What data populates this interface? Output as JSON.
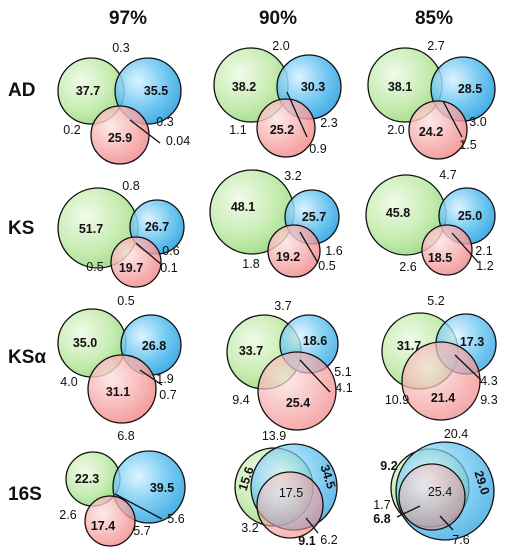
{
  "columns": [
    "97%",
    "90%",
    "85%"
  ],
  "rows": [
    "AD",
    "KS",
    "KSα",
    "16S"
  ],
  "colors": {
    "green_fill": "#b9e6a2",
    "blue_fill": "#36a9e5",
    "red_fill": "#f59a9a",
    "outline": "#111111"
  },
  "panels": {
    "ad_97": {
      "green": "37.7",
      "blue": "35.5",
      "red": "25.9",
      "gb": "0.3",
      "gr": "0.2",
      "br": "0.3",
      "all": "0.04"
    },
    "ad_90": {
      "green": "38.2",
      "blue": "30.3",
      "red": "25.2",
      "gb": "2.0",
      "gr": "1.1",
      "br": "2.3",
      "all": "0.9"
    },
    "ad_85": {
      "green": "38.1",
      "blue": "28.5",
      "red": "24.2",
      "gb": "2.7",
      "gr": "2.0",
      "br": "3.0",
      "all": "1.5"
    },
    "ks_97": {
      "green": "51.7",
      "blue": "26.7",
      "red": "19.7",
      "gb": "0.8",
      "gr": "0.5",
      "br": "0.6",
      "all": "0.1"
    },
    "ks_90": {
      "green": "48.1",
      "blue": "25.7",
      "red": "19.2",
      "gb": "3.2",
      "gr": "1.8",
      "br": "1.6",
      "all": "0.5"
    },
    "ks_85": {
      "green": "45.8",
      "blue": "25.0",
      "red": "18.5",
      "gb": "4.7",
      "gr": "2.6",
      "br": "2.1",
      "all": "1.2"
    },
    "ksa_97": {
      "green": "35.0",
      "blue": "26.8",
      "red": "31.1",
      "gb": "0.5",
      "gr": "4.0",
      "br": "1.9",
      "all": "0.7"
    },
    "ksa_90": {
      "green": "33.7",
      "blue": "18.6",
      "red": "25.4",
      "gb": "3.7",
      "gr": "9.4",
      "br": "5.1",
      "all": "4.1"
    },
    "ksa_85": {
      "green": "31.7",
      "blue": "17.3",
      "red": "21.4",
      "gb": "5.2",
      "gr": "10.9",
      "br": "4.3",
      "all": "9.3"
    },
    "s16_97": {
      "green": "22.3",
      "blue": "39.5",
      "red": "17.4",
      "gb": "6.8",
      "gr": "2.6",
      "br": "5.7",
      "all": "5.6"
    },
    "s16_90": {
      "green": "15.6",
      "blue": "34.5",
      "red": "9.1",
      "gb": "13.9",
      "gr": "3.2",
      "br": "6.2",
      "all": "17.5"
    },
    "s16_85": {
      "green": "9.2",
      "blue": "29.0",
      "red": "6.8",
      "gb": "20.4",
      "gr": "1.7",
      "br": "7.6",
      "all": "25.4"
    }
  }
}
